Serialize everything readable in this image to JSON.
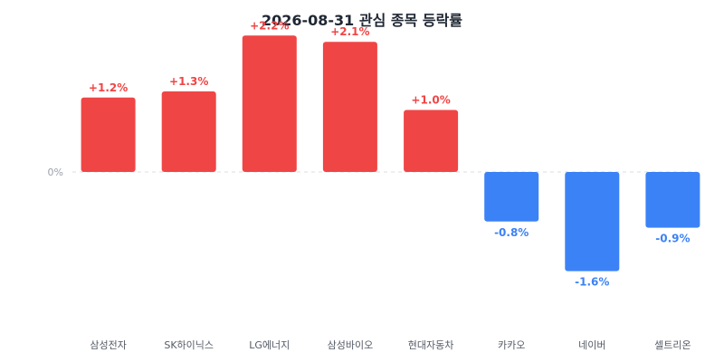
{
  "chart_data": {
    "type": "bar",
    "title": "2026-08-31 관심 종목 등락률",
    "categories": [
      "삼성전자",
      "SK하이닉스",
      "LG에너지",
      "삼성바이오",
      "현대자동차",
      "카카오",
      "네이버",
      "셀트리온"
    ],
    "values": [
      1.2,
      1.3,
      2.2,
      2.1,
      1.0,
      -0.8,
      -1.6,
      -0.9
    ],
    "value_labels": [
      "+1.2%",
      "+1.3%",
      "+2.2%",
      "+2.1%",
      "+1.0%",
      "-0.8%",
      "-1.6%",
      "-0.9%"
    ],
    "zero_tick_label": "0%",
    "ylim": [
      -2.45,
      2.45
    ],
    "xlabel": "",
    "ylabel": "",
    "grid": false,
    "baseline_style": "dashed",
    "colors": {
      "positive": "#f04545",
      "negative": "#3b82f6"
    }
  }
}
